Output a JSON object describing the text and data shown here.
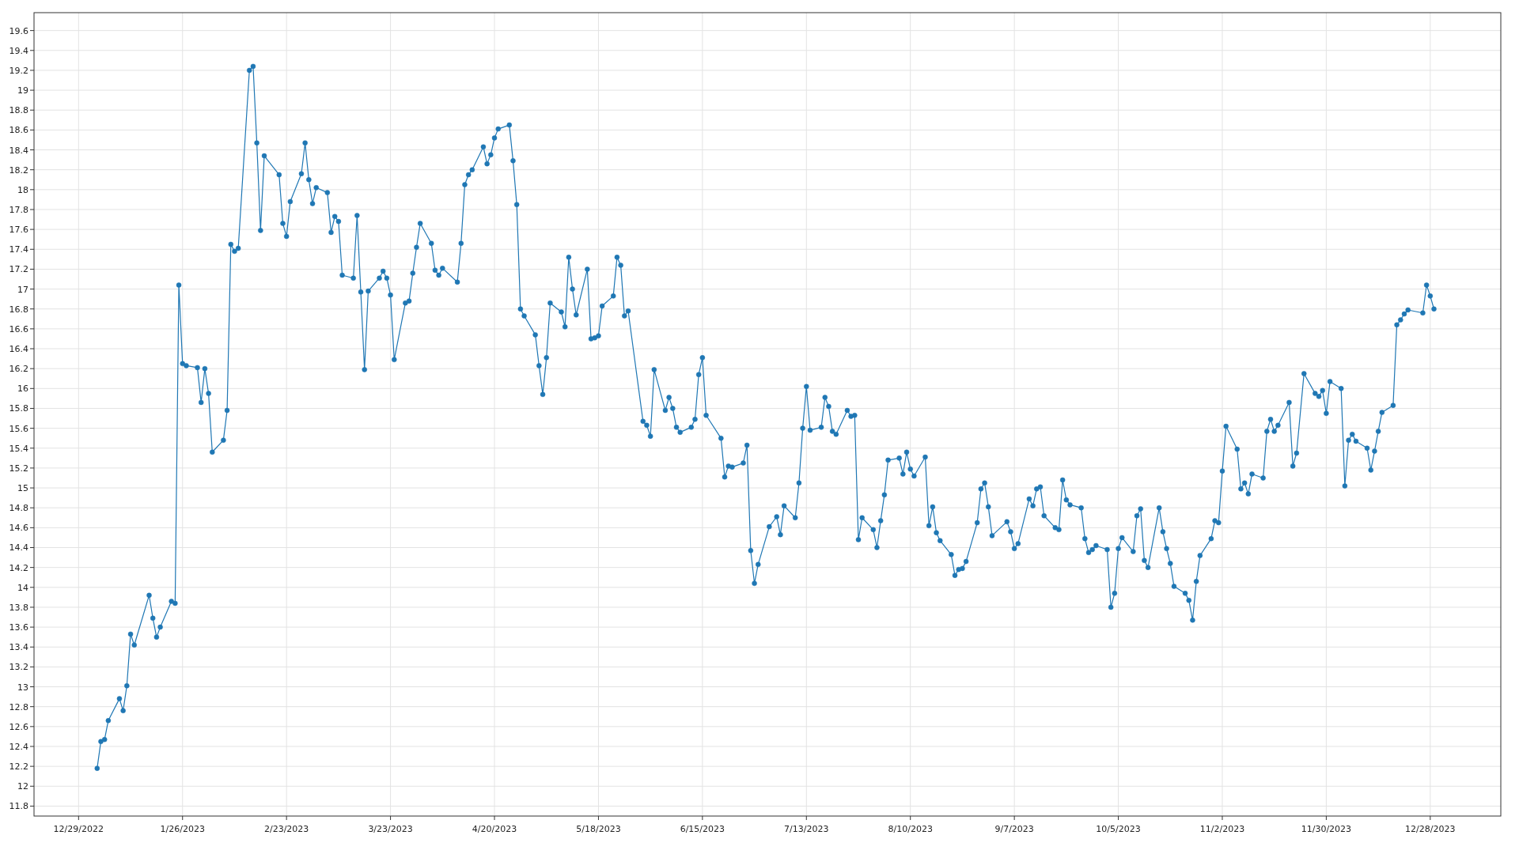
{
  "chart_data": {
    "type": "line",
    "grid": true,
    "marker": "circle",
    "line_style": "solid",
    "xlim": [
      "2022-12-17",
      "2024-01-16"
    ],
    "ylim": [
      11.7,
      19.78
    ],
    "xticks": [
      {
        "value": "2022-12-29",
        "label": "12/29/2022"
      },
      {
        "value": "2023-01-26",
        "label": "1/26/2023"
      },
      {
        "value": "2023-02-23",
        "label": "2/23/2023"
      },
      {
        "value": "2023-03-23",
        "label": "3/23/2023"
      },
      {
        "value": "2023-04-20",
        "label": "4/20/2023"
      },
      {
        "value": "2023-05-18",
        "label": "5/18/2023"
      },
      {
        "value": "2023-06-15",
        "label": "6/15/2023"
      },
      {
        "value": "2023-07-13",
        "label": "7/13/2023"
      },
      {
        "value": "2023-08-10",
        "label": "8/10/2023"
      },
      {
        "value": "2023-09-07",
        "label": "9/7/2023"
      },
      {
        "value": "2023-10-05",
        "label": "10/5/2023"
      },
      {
        "value": "2023-11-02",
        "label": "11/2/2023"
      },
      {
        "value": "2023-11-30",
        "label": "11/30/2023"
      },
      {
        "value": "2023-12-28",
        "label": "12/28/2023"
      }
    ],
    "yticks": [
      11.8,
      12,
      12.2,
      12.4,
      12.6,
      12.8,
      13,
      13.2,
      13.4,
      13.6,
      13.8,
      14,
      14.2,
      14.4,
      14.6,
      14.8,
      15,
      15.2,
      15.4,
      15.6,
      15.8,
      16,
      16.2,
      16.4,
      16.6,
      16.8,
      17,
      17.2,
      17.4,
      17.6,
      17.8,
      18,
      18.2,
      18.4,
      18.6,
      18.8,
      19,
      19.2,
      19.4,
      19.6
    ],
    "series": [
      {
        "color": "#1f77b4",
        "x": [
          "2023-01-03",
          "2023-01-04",
          "2023-01-05",
          "2023-01-06",
          "2023-01-09",
          "2023-01-10",
          "2023-01-11",
          "2023-01-12",
          "2023-01-13",
          "2023-01-17",
          "2023-01-18",
          "2023-01-19",
          "2023-01-20",
          "2023-01-23",
          "2023-01-24",
          "2023-01-25",
          "2023-01-26",
          "2023-01-27",
          "2023-01-30",
          "2023-01-31",
          "2023-02-01",
          "2023-02-02",
          "2023-02-03",
          "2023-02-06",
          "2023-02-07",
          "2023-02-08",
          "2023-02-09",
          "2023-02-10",
          "2023-02-13",
          "2023-02-14",
          "2023-02-15",
          "2023-02-16",
          "2023-02-17",
          "2023-02-21",
          "2023-02-22",
          "2023-02-23",
          "2023-02-24",
          "2023-02-27",
          "2023-02-28",
          "2023-03-01",
          "2023-03-02",
          "2023-03-03",
          "2023-03-06",
          "2023-03-07",
          "2023-03-08",
          "2023-03-09",
          "2023-03-10",
          "2023-03-13",
          "2023-03-14",
          "2023-03-15",
          "2023-03-16",
          "2023-03-17",
          "2023-03-20",
          "2023-03-21",
          "2023-03-22",
          "2023-03-23",
          "2023-03-24",
          "2023-03-27",
          "2023-03-28",
          "2023-03-29",
          "2023-03-30",
          "2023-03-31",
          "2023-04-03",
          "2023-04-04",
          "2023-04-05",
          "2023-04-06",
          "2023-04-10",
          "2023-04-11",
          "2023-04-12",
          "2023-04-13",
          "2023-04-14",
          "2023-04-17",
          "2023-04-18",
          "2023-04-19",
          "2023-04-20",
          "2023-04-21",
          "2023-04-24",
          "2023-04-25",
          "2023-04-26",
          "2023-04-27",
          "2023-04-28",
          "2023-05-01",
          "2023-05-02",
          "2023-05-03",
          "2023-05-04",
          "2023-05-05",
          "2023-05-08",
          "2023-05-09",
          "2023-05-10",
          "2023-05-11",
          "2023-05-12",
          "2023-05-15",
          "2023-05-16",
          "2023-05-17",
          "2023-05-18",
          "2023-05-19",
          "2023-05-22",
          "2023-05-23",
          "2023-05-24",
          "2023-05-25",
          "2023-05-26",
          "2023-05-30",
          "2023-05-31",
          "2023-06-01",
          "2023-06-02",
          "2023-06-05",
          "2023-06-06",
          "2023-06-07",
          "2023-06-08",
          "2023-06-09",
          "2023-06-12",
          "2023-06-13",
          "2023-06-14",
          "2023-06-15",
          "2023-06-16",
          "2023-06-20",
          "2023-06-21",
          "2023-06-22",
          "2023-06-23",
          "2023-06-26",
          "2023-06-27",
          "2023-06-28",
          "2023-06-29",
          "2023-06-30",
          "2023-07-03",
          "2023-07-05",
          "2023-07-06",
          "2023-07-07",
          "2023-07-10",
          "2023-07-11",
          "2023-07-12",
          "2023-07-13",
          "2023-07-14",
          "2023-07-17",
          "2023-07-18",
          "2023-07-19",
          "2023-07-20",
          "2023-07-21",
          "2023-07-24",
          "2023-07-25",
          "2023-07-26",
          "2023-07-27",
          "2023-07-28",
          "2023-07-31",
          "2023-08-01",
          "2023-08-02",
          "2023-08-03",
          "2023-08-04",
          "2023-08-07",
          "2023-08-08",
          "2023-08-09",
          "2023-08-10",
          "2023-08-11",
          "2023-08-14",
          "2023-08-15",
          "2023-08-16",
          "2023-08-17",
          "2023-08-18",
          "2023-08-21",
          "2023-08-22",
          "2023-08-23",
          "2023-08-24",
          "2023-08-25",
          "2023-08-28",
          "2023-08-29",
          "2023-08-30",
          "2023-08-31",
          "2023-09-01",
          "2023-09-05",
          "2023-09-06",
          "2023-09-07",
          "2023-09-08",
          "2023-09-11",
          "2023-09-12",
          "2023-09-13",
          "2023-09-14",
          "2023-09-15",
          "2023-09-18",
          "2023-09-19",
          "2023-09-20",
          "2023-09-21",
          "2023-09-22",
          "2023-09-25",
          "2023-09-26",
          "2023-09-27",
          "2023-09-28",
          "2023-09-29",
          "2023-10-02",
          "2023-10-03",
          "2023-10-04",
          "2023-10-05",
          "2023-10-06",
          "2023-10-09",
          "2023-10-10",
          "2023-10-11",
          "2023-10-12",
          "2023-10-13",
          "2023-10-16",
          "2023-10-17",
          "2023-10-18",
          "2023-10-19",
          "2023-10-20",
          "2023-10-23",
          "2023-10-24",
          "2023-10-25",
          "2023-10-26",
          "2023-10-27",
          "2023-10-30",
          "2023-10-31",
          "2023-11-01",
          "2023-11-02",
          "2023-11-03",
          "2023-11-06",
          "2023-11-07",
          "2023-11-08",
          "2023-11-09",
          "2023-11-10",
          "2023-11-13",
          "2023-11-14",
          "2023-11-15",
          "2023-11-16",
          "2023-11-17",
          "2023-11-20",
          "2023-11-21",
          "2023-11-22",
          "2023-11-24",
          "2023-11-27",
          "2023-11-28",
          "2023-11-29",
          "2023-11-30",
          "2023-12-01",
          "2023-12-04",
          "2023-12-05",
          "2023-12-06",
          "2023-12-07",
          "2023-12-08",
          "2023-12-11",
          "2023-12-12",
          "2023-12-13",
          "2023-12-14",
          "2023-12-15",
          "2023-12-18",
          "2023-12-19",
          "2023-12-20",
          "2023-12-21",
          "2023-12-22",
          "2023-12-26",
          "2023-12-27",
          "2023-12-28",
          "2023-12-29"
        ],
        "values": [
          12.18,
          12.45,
          12.47,
          12.66,
          12.88,
          12.76,
          13.01,
          13.53,
          13.42,
          13.92,
          13.69,
          13.5,
          13.6,
          13.86,
          13.84,
          17.04,
          16.25,
          16.23,
          16.21,
          15.86,
          16.2,
          15.95,
          15.36,
          15.48,
          15.78,
          17.45,
          17.38,
          17.41,
          19.2,
          19.24,
          18.47,
          17.59,
          18.34,
          18.15,
          17.66,
          17.53,
          17.88,
          18.16,
          18.47,
          18.1,
          17.86,
          18.02,
          17.97,
          17.57,
          17.73,
          17.68,
          17.14,
          17.11,
          17.74,
          16.97,
          16.19,
          16.98,
          17.11,
          17.18,
          17.11,
          16.94,
          16.29,
          16.86,
          16.88,
          17.16,
          17.42,
          17.66,
          17.46,
          17.19,
          17.14,
          17.21,
          17.07,
          17.46,
          18.05,
          18.15,
          18.2,
          18.43,
          18.26,
          18.35,
          18.52,
          18.61,
          18.65,
          18.29,
          17.85,
          16.8,
          16.73,
          16.54,
          16.23,
          15.94,
          16.31,
          16.86,
          16.77,
          16.62,
          17.32,
          17,
          16.74,
          17.2,
          16.5,
          16.51,
          16.53,
          16.83,
          16.93,
          17.32,
          17.24,
          16.73,
          16.78,
          15.67,
          15.63,
          15.52,
          16.19,
          15.78,
          15.91,
          15.8,
          15.61,
          15.56,
          15.61,
          15.69,
          16.14,
          16.31,
          15.73,
          15.5,
          15.11,
          15.22,
          15.21,
          15.25,
          15.43,
          14.37,
          14.04,
          14.23,
          14.61,
          14.71,
          14.53,
          14.82,
          14.7,
          15.05,
          15.6,
          16.02,
          15.58,
          15.61,
          15.91,
          15.82,
          15.57,
          15.54,
          15.78,
          15.72,
          15.73,
          14.48,
          14.7,
          14.58,
          14.4,
          14.67,
          14.93,
          15.28,
          15.3,
          15.14,
          15.36,
          15.19,
          15.12,
          15.31,
          14.62,
          14.81,
          14.55,
          14.47,
          14.33,
          14.12,
          14.18,
          14.19,
          14.26,
          14.65,
          14.99,
          15.05,
          14.81,
          14.52,
          14.66,
          14.56,
          14.39,
          14.44,
          14.89,
          14.82,
          14.99,
          15.01,
          14.72,
          14.6,
          14.58,
          15.08,
          14.88,
          14.83,
          14.8,
          14.49,
          14.35,
          14.38,
          14.42,
          14.38,
          13.8,
          13.94,
          14.39,
          14.5,
          14.36,
          14.72,
          14.79,
          14.27,
          14.2,
          14.8,
          14.56,
          14.39,
          14.24,
          14.01,
          13.94,
          13.87,
          13.67,
          14.06,
          14.32,
          14.49,
          14.67,
          14.65,
          15.17,
          15.62,
          15.39,
          14.99,
          15.05,
          14.94,
          15.14,
          15.1,
          15.57,
          15.69,
          15.57,
          15.63,
          15.86,
          15.22,
          15.35,
          16.15,
          15.95,
          15.92,
          15.98,
          15.75,
          16.07,
          16,
          15.02,
          15.48,
          15.54,
          15.47,
          15.4,
          15.18,
          15.37,
          15.57,
          15.76,
          15.83,
          16.64,
          16.69,
          16.75,
          16.79,
          16.76,
          17.04,
          16.93,
          16.8
        ]
      }
    ]
  }
}
